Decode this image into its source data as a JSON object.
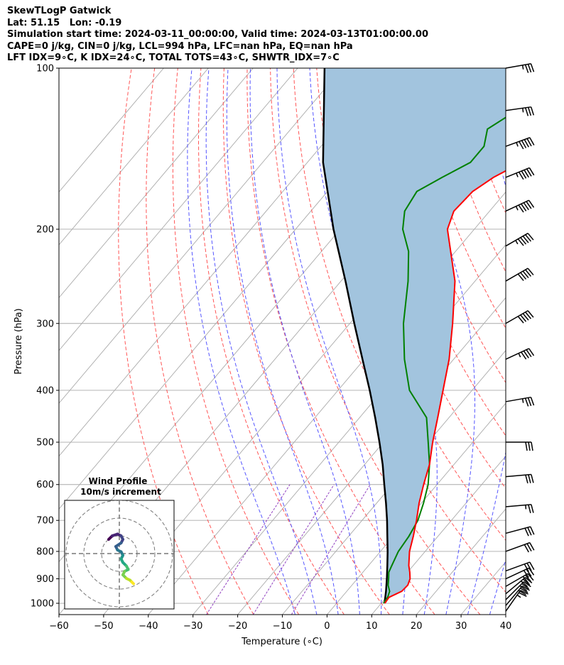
{
  "header": {
    "title": "SkewTLogP Gatwick",
    "location": "Lat: 51.15   Lon: -0.19",
    "times": "Simulation start time: 2024-03-11_00:00:00, Valid time: 2024-03-13T01:00:00.00",
    "indices1": "CAPE=0 j/kg, CIN=0 j/kg, LCL=994 hPa, LFC=nan hPa, EQ=nan hPa",
    "indices2": "LFT IDX=9∘C, K IDX=24∘C, TOTAL TOTS=43∘C, SHWTR_IDX=7∘C"
  },
  "colors": {
    "temperature": "#ff0000",
    "dewpoint": "#008000",
    "parcel": "#000000",
    "shading": "#a2c4de",
    "dry_adiabat": "#ff5555",
    "moist_adiabat": "#5555ff",
    "mixing_ratio": "#9040c0",
    "isotherm": "#aaaaaa"
  },
  "chart_data": {
    "type": "line",
    "subtype": "skew-t log-p",
    "xlabel": "Temperature (∘C)",
    "ylabel": "Pressure (hPa)",
    "xlim": [
      -60,
      40
    ],
    "ylim": [
      1050,
      100
    ],
    "y_scale": "log",
    "x_ticks": [
      "−60",
      "−50",
      "−40",
      "−30",
      "−20",
      "−10",
      "0",
      "10",
      "20",
      "30",
      "40"
    ],
    "y_ticks": [
      "100",
      "200",
      "300",
      "400",
      "500",
      "600",
      "700",
      "800",
      "900",
      "1000"
    ],
    "grid": true,
    "series": [
      {
        "role": "temperature",
        "p": [
          1000,
          975,
          950,
          925,
          900,
          875,
          850,
          800,
          750,
          700,
          650,
          600,
          550,
          500,
          450,
          400,
          350,
          300,
          250,
          200,
          185,
          170,
          160,
          150,
          140,
          130,
          120,
          110,
          100
        ],
        "t": [
          10.8,
          10.6,
          12.3,
          12.5,
          11.8,
          10.5,
          9.0,
          6.5,
          4.5,
          2.2,
          -0.5,
          -3.0,
          -5.5,
          -9.0,
          -12.5,
          -16.5,
          -21.0,
          -27.0,
          -34.5,
          -46.0,
          -48.0,
          -47.5,
          -45.5,
          -42.0,
          -38.0,
          -35.5,
          -33.5,
          -32.0,
          -30.5
        ]
      },
      {
        "role": "dewpoint",
        "p": [
          1000,
          975,
          950,
          925,
          900,
          875,
          850,
          800,
          750,
          700,
          650,
          600,
          550,
          500,
          450,
          400,
          350,
          300,
          250,
          220,
          200,
          185,
          170,
          160,
          150,
          140,
          130,
          120,
          110,
          100
        ],
        "t": [
          10.5,
          10.3,
          9.6,
          8.1,
          7.0,
          5.8,
          5.2,
          4.0,
          3.5,
          2.5,
          0.5,
          -2.0,
          -5.5,
          -10.0,
          -15.0,
          -24.0,
          -31.0,
          -38.0,
          -45.0,
          -50.5,
          -56.0,
          -59.0,
          -60.0,
          -57.0,
          -53.5,
          -53.5,
          -56.0,
          -53.0,
          -49.5,
          -45.5
        ]
      },
      {
        "role": "parcel",
        "p": [
          1000,
          994,
          950,
          900,
          850,
          800,
          750,
          700,
          650,
          600,
          550,
          500,
          450,
          400,
          350,
          300,
          250,
          200,
          150,
          100
        ],
        "t": [
          10.8,
          10.5,
          8.8,
          6.6,
          4.2,
          1.6,
          -1.3,
          -4.4,
          -7.9,
          -11.8,
          -16.0,
          -20.9,
          -26.5,
          -32.9,
          -40.4,
          -49.0,
          -59.0,
          -71.5,
          -86.5,
          -104.0
        ]
      }
    ],
    "wind_barbs": [
      {
        "p": 100,
        "u_dir_deg": 260,
        "speed_kt": 35
      },
      {
        "p": 120,
        "u_dir_deg": 262,
        "speed_kt": 35
      },
      {
        "p": 140,
        "u_dir_deg": 250,
        "speed_kt": 55
      },
      {
        "p": 160,
        "u_dir_deg": 248,
        "speed_kt": 55
      },
      {
        "p": 185,
        "u_dir_deg": 245,
        "speed_kt": 55
      },
      {
        "p": 215,
        "u_dir_deg": 240,
        "speed_kt": 55
      },
      {
        "p": 250,
        "u_dir_deg": 240,
        "speed_kt": 50
      },
      {
        "p": 300,
        "u_dir_deg": 240,
        "speed_kt": 50
      },
      {
        "p": 350,
        "u_dir_deg": 245,
        "speed_kt": 45
      },
      {
        "p": 420,
        "u_dir_deg": 260,
        "speed_kt": 35
      },
      {
        "p": 500,
        "u_dir_deg": 270,
        "speed_kt": 30
      },
      {
        "p": 580,
        "u_dir_deg": 265,
        "speed_kt": 30
      },
      {
        "p": 660,
        "u_dir_deg": 265,
        "speed_kt": 25
      },
      {
        "p": 740,
        "u_dir_deg": 255,
        "speed_kt": 30
      },
      {
        "p": 800,
        "u_dir_deg": 250,
        "speed_kt": 30
      },
      {
        "p": 870,
        "u_dir_deg": 250,
        "speed_kt": 30
      },
      {
        "p": 900,
        "u_dir_deg": 245,
        "speed_kt": 30
      },
      {
        "p": 930,
        "u_dir_deg": 240,
        "speed_kt": 30
      },
      {
        "p": 960,
        "u_dir_deg": 230,
        "speed_kt": 30
      },
      {
        "p": 985,
        "u_dir_deg": 225,
        "speed_kt": 30
      },
      {
        "p": 1010,
        "u_dir_deg": 220,
        "speed_kt": 30
      },
      {
        "p": 1035,
        "u_dir_deg": 215,
        "speed_kt": 25
      }
    ],
    "inset": {
      "title": "Wind Profile",
      "subtitle": "10m/s increment",
      "rings_m_s": [
        10,
        20,
        30
      ],
      "hodograph_uv": [
        [
          -6,
          8
        ],
        [
          -4,
          10
        ],
        [
          -1,
          11
        ],
        [
          1,
          10
        ],
        [
          2,
          8
        ],
        [
          1,
          6
        ],
        [
          -2,
          4
        ],
        [
          -1,
          2
        ],
        [
          1,
          1
        ],
        [
          2,
          -1
        ],
        [
          1,
          -3
        ],
        [
          2,
          -5
        ],
        [
          4,
          -7
        ],
        [
          5,
          -9
        ],
        [
          3,
          -10
        ],
        [
          2,
          -12
        ],
        [
          4,
          -14
        ],
        [
          6,
          -15
        ],
        [
          7,
          -16
        ],
        [
          8,
          -17
        ]
      ]
    }
  }
}
